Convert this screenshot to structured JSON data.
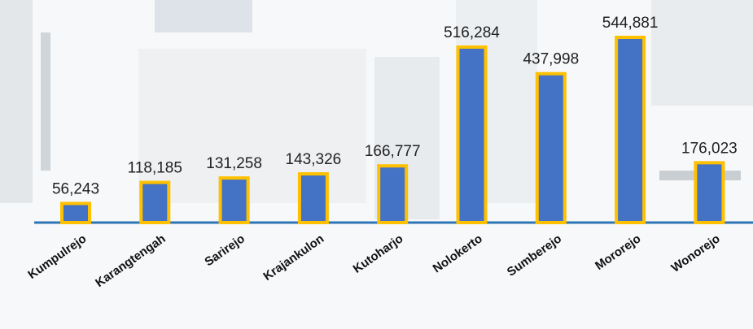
{
  "chart_data": {
    "type": "bar",
    "categories": [
      "Kumpulrejo",
      "Karangtengah",
      "Sarirejo",
      "Krajankulon",
      "Kutoharjo",
      "Nolokerto",
      "Sumberejo",
      "Mororejo",
      "Wonorejo"
    ],
    "values": [
      56243,
      118185,
      131258,
      143326,
      166777,
      516284,
      437998,
      544881,
      176023
    ],
    "value_labels": [
      "56,243",
      "118,185",
      "131,258",
      "143,326",
      "166,777",
      "516,284",
      "437,998",
      "544,881",
      "176,023"
    ],
    "color": "#4472c4",
    "edge_color": "#ffc000"
  }
}
